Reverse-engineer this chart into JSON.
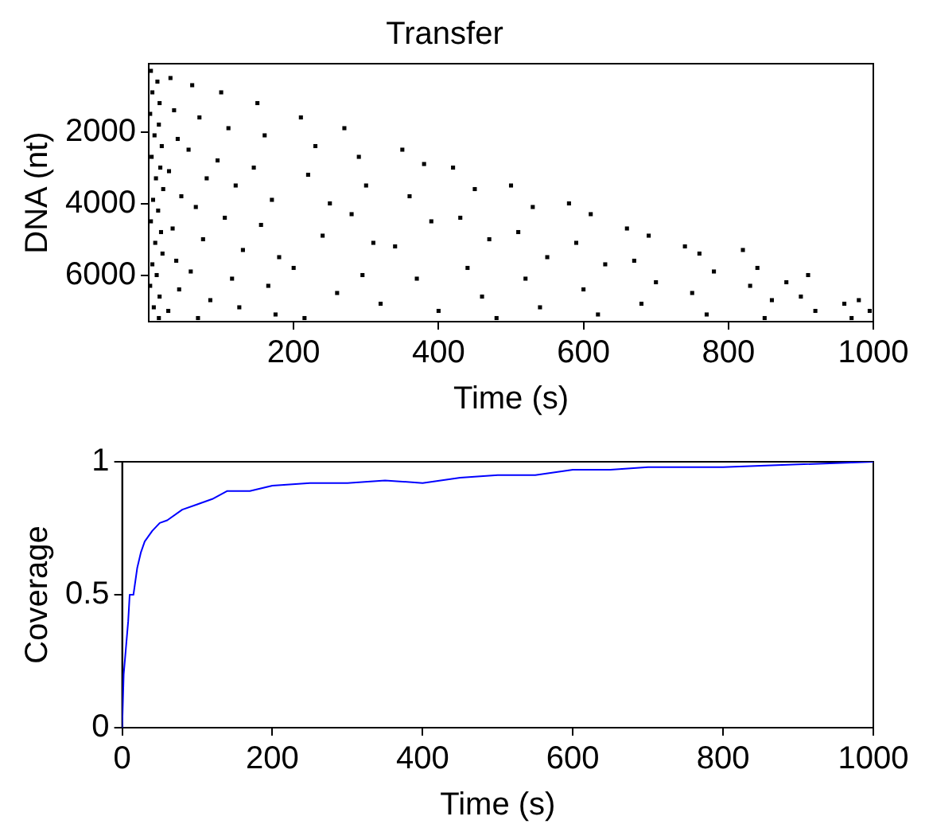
{
  "chart_data": [
    {
      "type": "scatter",
      "title": "Transfer",
      "xlabel": "Time (s)",
      "ylabel": "DNA (nt)",
      "xlim": [
        0,
        1000
      ],
      "xticks": [
        200,
        400,
        600,
        800,
        1000
      ],
      "ylim": [
        7300,
        100
      ],
      "yticks": [
        2000,
        4000,
        6000
      ],
      "marker": "square",
      "grid": false,
      "legend": false,
      "series": [
        {
          "color": "#000000",
          "x": [
            3,
            5,
            2,
            8,
            4,
            10,
            6,
            3,
            9,
            5,
            2,
            7,
            12,
            15,
            14,
            18,
            16,
            20,
            13,
            17,
            19,
            11,
            15,
            14,
            30,
            35,
            40,
            28,
            45,
            33,
            38,
            42,
            27,
            60,
            70,
            55,
            80,
            65,
            75,
            58,
            85,
            68,
            100,
            110,
            95,
            120,
            105,
            130,
            115,
            125,
            150,
            160,
            145,
            170,
            155,
            180,
            165,
            175,
            210,
            230,
            220,
            250,
            240,
            200,
            260,
            215,
            270,
            290,
            300,
            280,
            310,
            295,
            320,
            350,
            380,
            360,
            390,
            340,
            370,
            400,
            420,
            450,
            430,
            470,
            440,
            460,
            480,
            500,
            530,
            510,
            550,
            520,
            540,
            580,
            610,
            590,
            630,
            600,
            620,
            660,
            690,
            670,
            700,
            680,
            740,
            760,
            780,
            750,
            770,
            820,
            840,
            830,
            860,
            850,
            880,
            910,
            900,
            920,
            960,
            980,
            970,
            995
          ],
          "values": [
            300,
            900,
            1500,
            2100,
            2700,
            3300,
            3900,
            4500,
            5100,
            5700,
            6300,
            6900,
            600,
            1200,
            1800,
            2400,
            3000,
            3600,
            4200,
            4800,
            5400,
            6000,
            6600,
            7200,
            500,
            1400,
            2200,
            3100,
            3800,
            4700,
            5600,
            6400,
            7000,
            700,
            1600,
            2500,
            3300,
            4100,
            5000,
            5900,
            6700,
            7200,
            900,
            1900,
            2800,
            3500,
            4400,
            5300,
            6100,
            6900,
            1200,
            2100,
            3000,
            3900,
            4600,
            5500,
            6300,
            7100,
            1600,
            2400,
            3200,
            4000,
            4900,
            5800,
            6500,
            7200,
            1900,
            2700,
            3500,
            4300,
            5100,
            6000,
            6800,
            2500,
            2900,
            3800,
            4500,
            5200,
            6100,
            7000,
            3000,
            3600,
            4400,
            5000,
            5800,
            6600,
            7200,
            3500,
            4100,
            4800,
            5500,
            6100,
            6900,
            4000,
            4300,
            5100,
            5700,
            6400,
            7100,
            4700,
            4900,
            5600,
            6200,
            6800,
            5200,
            5400,
            5900,
            6500,
            7100,
            5300,
            5800,
            6300,
            6700,
            7200,
            6200,
            6000,
            6600,
            7000,
            6800,
            6700,
            7200,
            7000
          ]
        }
      ]
    },
    {
      "type": "line",
      "xlabel": "Time (s)",
      "ylabel": "Coverage",
      "xlim": [
        0,
        1000
      ],
      "xticks": [
        0,
        200,
        400,
        600,
        800,
        1000
      ],
      "ylim": [
        0,
        1
      ],
      "yticks": [
        0,
        0.5,
        1
      ],
      "marker": "none",
      "grid": false,
      "legend": false,
      "series": [
        {
          "color": "#0000ff",
          "x": [
            0,
            2,
            5,
            8,
            10,
            15,
            20,
            25,
            30,
            40,
            50,
            60,
            80,
            100,
            120,
            140,
            170,
            200,
            250,
            300,
            350,
            400,
            450,
            500,
            550,
            600,
            650,
            700,
            750,
            800,
            900,
            1000
          ],
          "values": [
            0,
            0.2,
            0.3,
            0.4,
            0.5,
            0.5,
            0.6,
            0.66,
            0.7,
            0.74,
            0.77,
            0.78,
            0.82,
            0.84,
            0.86,
            0.89,
            0.89,
            0.91,
            0.92,
            0.92,
            0.93,
            0.92,
            0.94,
            0.95,
            0.95,
            0.97,
            0.97,
            0.98,
            0.98,
            0.98,
            0.99,
            1
          ]
        }
      ]
    }
  ]
}
